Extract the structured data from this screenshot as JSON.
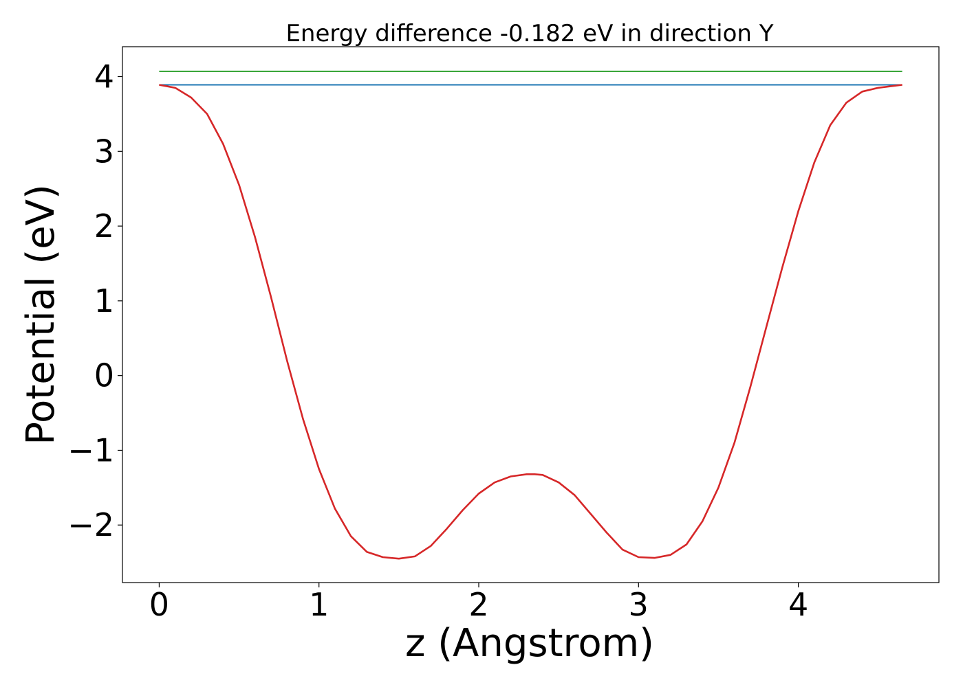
{
  "chart_data": {
    "type": "line",
    "title": "Energy difference -0.182 eV in direction Y",
    "xlabel": "z (Angstrom)",
    "ylabel": "Potential (eV)",
    "xlim": [
      -0.23,
      4.88
    ],
    "ylim": [
      -2.77,
      4.4
    ],
    "xticks": [
      0,
      1,
      2,
      3,
      4
    ],
    "xtick_labels": [
      "0",
      "1",
      "2",
      "3",
      "4"
    ],
    "yticks": [
      -2,
      -1,
      0,
      1,
      2,
      3,
      4
    ],
    "ytick_labels": [
      "−2",
      "−1",
      "0",
      "1",
      "2",
      "3",
      "4"
    ],
    "grid": false,
    "series": [
      {
        "color": "#2ca02c",
        "x": [
          0,
          4.65
        ],
        "values": [
          4.07,
          4.07
        ]
      },
      {
        "color": "#1f77b4",
        "x": [
          0,
          4.65
        ],
        "values": [
          3.89,
          3.89
        ]
      },
      {
        "color": "#d62728",
        "x": [
          0,
          0.1,
          0.2,
          0.3,
          0.4,
          0.5,
          0.6,
          0.7,
          0.8,
          0.9,
          1.0,
          1.1,
          1.2,
          1.3,
          1.4,
          1.5,
          1.6,
          1.7,
          1.8,
          1.9,
          2.0,
          2.1,
          2.2,
          2.3,
          2.35,
          2.4,
          2.5,
          2.6,
          2.7,
          2.8,
          2.9,
          3.0,
          3.1,
          3.2,
          3.3,
          3.4,
          3.5,
          3.6,
          3.7,
          3.8,
          3.9,
          4.0,
          4.1,
          4.2,
          4.3,
          4.4,
          4.5,
          4.65
        ],
        "values": [
          3.89,
          3.85,
          3.72,
          3.5,
          3.1,
          2.55,
          1.85,
          1.05,
          0.2,
          -0.58,
          -1.25,
          -1.78,
          -2.15,
          -2.36,
          -2.43,
          -2.45,
          -2.42,
          -2.28,
          -2.05,
          -1.8,
          -1.58,
          -1.43,
          -1.35,
          -1.32,
          -1.32,
          -1.33,
          -1.43,
          -1.6,
          -1.85,
          -2.1,
          -2.33,
          -2.43,
          -2.44,
          -2.4,
          -2.26,
          -1.95,
          -1.5,
          -0.9,
          -0.15,
          0.65,
          1.45,
          2.2,
          2.85,
          3.35,
          3.65,
          3.8,
          3.85,
          3.89
        ]
      }
    ]
  }
}
